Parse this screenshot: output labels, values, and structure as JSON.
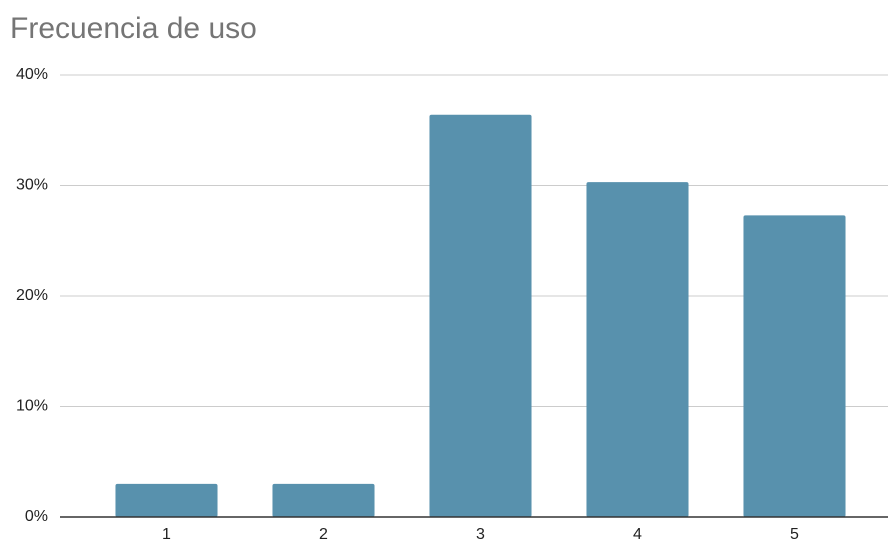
{
  "chart_data": {
    "type": "bar",
    "title": "Frecuencia de uso",
    "categories": [
      "1",
      "2",
      "3",
      "4",
      "5"
    ],
    "values": [
      3.0,
      3.0,
      36.4,
      30.3,
      27.3
    ],
    "color": "#5891ad",
    "ylim": [
      0,
      40
    ],
    "yticks": [
      {
        "value": 0,
        "label": "0%"
      },
      {
        "value": 10,
        "label": "10%"
      },
      {
        "value": 20,
        "label": "20%"
      },
      {
        "value": 30,
        "label": "30%"
      },
      {
        "value": 40,
        "label": "40%"
      }
    ],
    "grid": true
  }
}
